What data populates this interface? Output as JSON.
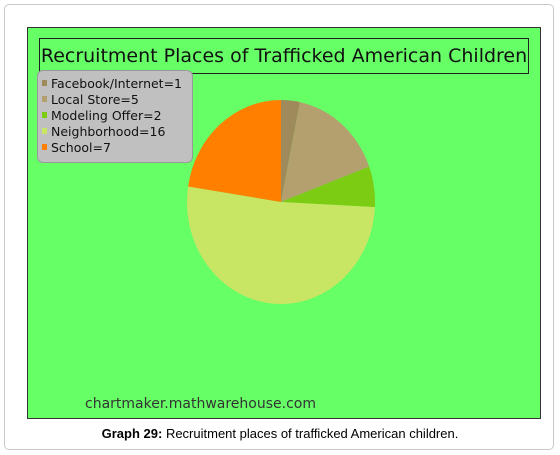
{
  "chart_data": {
    "type": "pie",
    "title": "Recruitment Places of Trafficked American Children",
    "slices": [
      {
        "label": "Facebook/Internet=1",
        "value": 1,
        "color": "#9e8a5a"
      },
      {
        "label": "Local Store=5",
        "value": 5,
        "color": "#b4a06e"
      },
      {
        "label": "Modeling Offer=2",
        "value": 2,
        "color": "#7dcc14"
      },
      {
        "label": "Neighborhood=16",
        "value": 16,
        "color": "#c8e664"
      },
      {
        "label": "School=7",
        "value": 7,
        "color": "#ff7f00"
      }
    ],
    "legend_position": "top-left",
    "background_color": "#66ff66"
  },
  "watermark": "chartmaker.mathwarehouse.com",
  "caption": {
    "label": "Graph 29:",
    "text": " Recruitment places of trafficked American children."
  }
}
